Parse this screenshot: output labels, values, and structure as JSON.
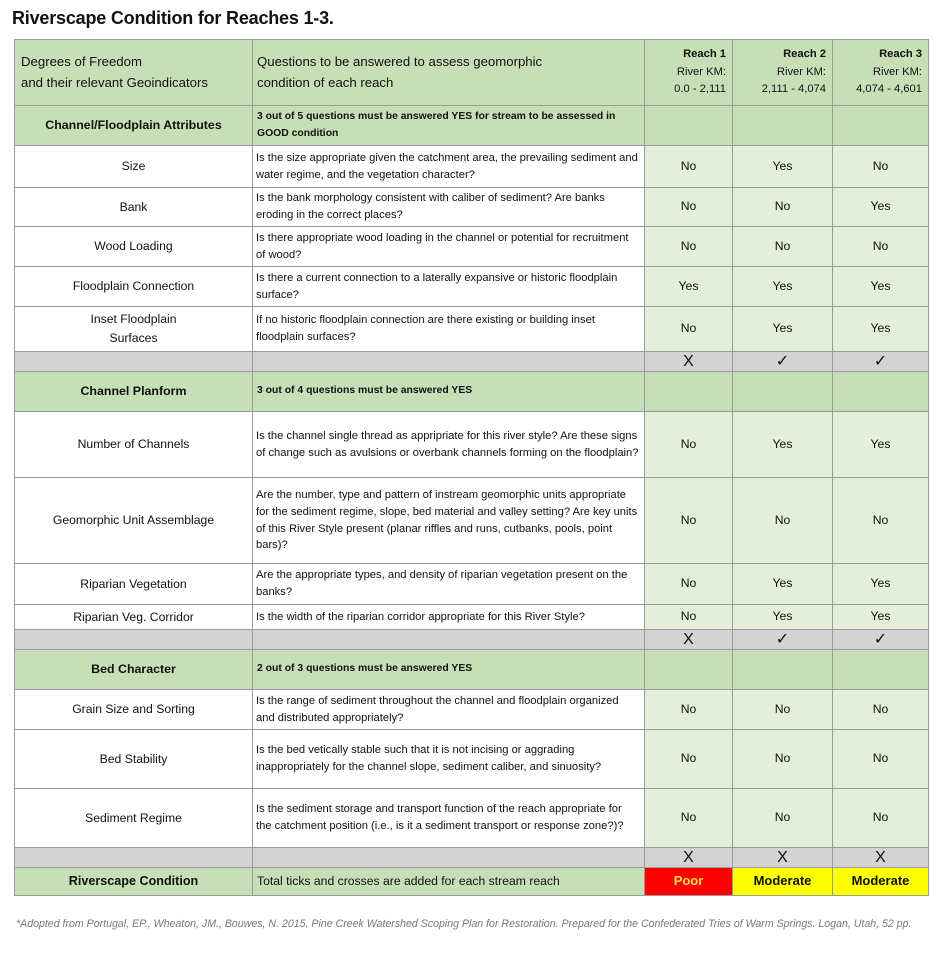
{
  "title": "Riverscape Condition for Reaches 1-3.",
  "header": {
    "col1_line1": "Degrees of Freedom",
    "col1_line2": "and their relevant Geoindicators",
    "col2_line1": "Questions to be answered to assess geomorphic",
    "col2_line2": "condition of each reach",
    "reaches": [
      {
        "name": "Reach 1",
        "km_label": "River KM:",
        "km": "0.0 - 2,111"
      },
      {
        "name": "Reach 2",
        "km_label": "River KM:",
        "km": "2,111 - 4,074"
      },
      {
        "name": "Reach 3",
        "km_label": "River KM:",
        "km": "4,074 - 4,601"
      }
    ]
  },
  "sections": [
    {
      "name": "Channel/Floodplain Attributes",
      "note": "3 out of 5 questions must be answered YES for stream to be assessed in GOOD condition",
      "rows": [
        {
          "attr": "Size",
          "q": "Is the size appropriate given the catchment area, the prevailing sediment and water regime, and the vegetation character?",
          "r": [
            "No",
            "Yes",
            "No"
          ]
        },
        {
          "attr": "Bank",
          "q": "Is the bank morphology consistent with caliber of sediment? Are banks eroding in the correct places?",
          "r": [
            "No",
            "No",
            "Yes"
          ]
        },
        {
          "attr": "Wood Loading",
          "q": "Is there appropriate wood loading in the channel or potential for recruitment of wood?",
          "r": [
            "No",
            "No",
            "No"
          ]
        },
        {
          "attr": "Floodplain Connection",
          "q": "Is there a current connection to a laterally expansive or historic floodplain surface?",
          "r": [
            "Yes",
            "Yes",
            "Yes"
          ]
        },
        {
          "attr": "Inset Floodplain Surfaces",
          "q": "If no historic floodplain connection are there existing or building inset floodplain surfaces?",
          "r": [
            "No",
            "Yes",
            "Yes"
          ]
        }
      ],
      "tally": [
        "X",
        "✓",
        "✓"
      ]
    },
    {
      "name": "Channel Planform",
      "note": "3 out of 4 questions must be answered YES",
      "rows": [
        {
          "attr": "Number of Channels",
          "q": "Is the channel single thread as appripriate for this river style? Are these signs of change such as avulsions or overbank channels forming on the floodplain?",
          "r": [
            "No",
            "Yes",
            "Yes"
          ]
        },
        {
          "attr": "Geomorphic Unit Assemblage",
          "q": "Are the number, type and pattern of instream geomorphic units appropriate for the sediment regime, slope, bed material and valley setting? Are key units of this River Style present (planar riffles and runs, cutbanks, pools, point bars)?",
          "r": [
            "No",
            "No",
            "No"
          ]
        },
        {
          "attr": "Riparian Vegetation",
          "q": "Are the appropriate types, and density of riparian vegetation present on the banks?",
          "r": [
            "No",
            "Yes",
            "Yes"
          ]
        },
        {
          "attr": "Riparian Veg. Corridor",
          "q": "Is the width of the riparian corridor appropriate for this River Style?",
          "r": [
            "No",
            "Yes",
            "Yes"
          ]
        }
      ],
      "tally": [
        "X",
        "✓",
        "✓"
      ]
    },
    {
      "name": "Bed Character",
      "note": "2 out of 3 questions must be answered YES",
      "rows": [
        {
          "attr": "Grain Size and Sorting",
          "q": "Is the range of sediment throughout the channel and floodplain organized and distributed appropriately?",
          "r": [
            "No",
            "No",
            "No"
          ]
        },
        {
          "attr": "Bed Stability",
          "q": "Is the bed vetically stable such that it is not incising or aggrading inappropriately for the channel slope, sediment caliber, and sinuosity?",
          "r": [
            "No",
            "No",
            "No"
          ]
        },
        {
          "attr": "Sediment Regime",
          "q": "Is the sediment storage and transport function of the reach appropriate for the catchment position (i.e., is it a sediment transport or response zone?)?",
          "r": [
            "No",
            "No",
            "No"
          ]
        }
      ],
      "tally": [
        "X",
        "X",
        "X"
      ]
    }
  ],
  "condition": {
    "name": "Riverscape Condition",
    "note": "Total ticks and crosses are added for each stream reach",
    "results": [
      {
        "label": "Poor",
        "bg": "#ff0000",
        "fg": "#f5e04a"
      },
      {
        "label": "Moderate",
        "bg": "#ffff00",
        "fg": "#111111"
      },
      {
        "label": "Moderate",
        "bg": "#ffff00",
        "fg": "#111111"
      }
    ]
  },
  "footnote": "*Adopted from Portugal, EP., Wheaton, JM., Bouwes, N. 2015. Pine Creek Watershed Scoping Plan for Restoration. Prepared for the Confederated Tries of Warm Springs. Logan, Utah, 52 pp."
}
